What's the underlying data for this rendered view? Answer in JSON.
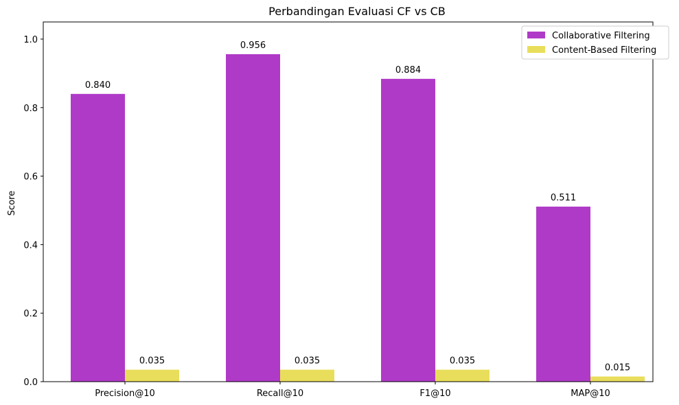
{
  "chart_data": {
    "type": "bar",
    "title": "Perbandingan Evaluasi CF vs CB",
    "xlabel": "",
    "ylabel": "Score",
    "categories": [
      "Precision@10",
      "Recall@10",
      "F1@10",
      "MAP@10"
    ],
    "series": [
      {
        "name": "Collaborative Filtering",
        "color": "#b03ac8",
        "values": [
          0.84,
          0.956,
          0.884,
          0.511
        ],
        "labels": [
          "0.840",
          "0.956",
          "0.884",
          "0.511"
        ]
      },
      {
        "name": "Content-Based Filtering",
        "color": "#e9de5b",
        "values": [
          0.035,
          0.035,
          0.035,
          0.015
        ],
        "labels": [
          "0.035",
          "0.035",
          "0.035",
          "0.015"
        ]
      }
    ],
    "ylim": [
      0,
      1.05
    ],
    "yticks": [
      0.0,
      0.2,
      0.4,
      0.6,
      0.8,
      1.0
    ],
    "ytick_labels": [
      "0.0",
      "0.2",
      "0.4",
      "0.6",
      "0.8",
      "1.0"
    ],
    "grid": false,
    "legend": "top-right"
  }
}
